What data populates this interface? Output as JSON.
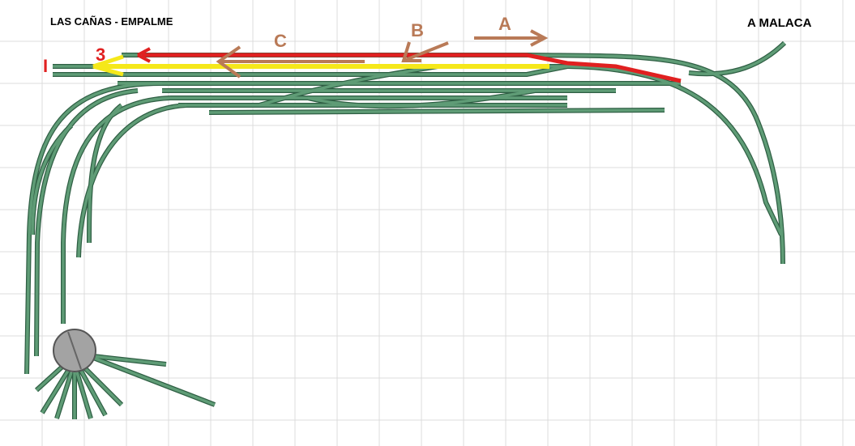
{
  "header": {
    "title": "LAS CAÑAS - EMPALME",
    "destination": "A MALACA"
  },
  "labels": {
    "a": "A",
    "b": "B",
    "c": "C",
    "track_3": "3",
    "track_1": "I"
  }
}
